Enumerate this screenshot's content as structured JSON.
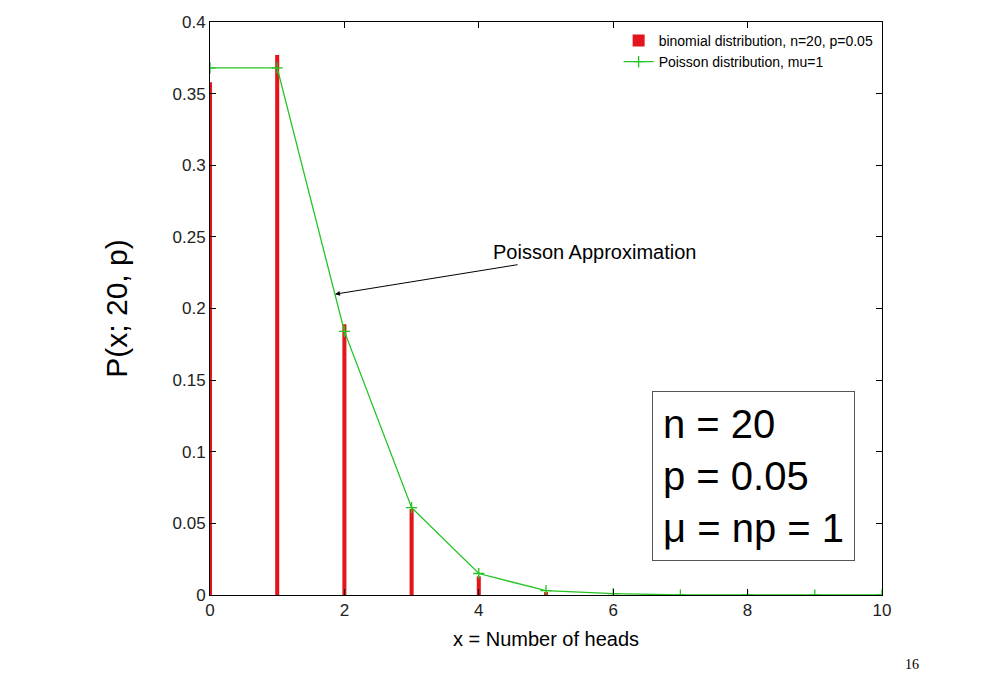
{
  "chart_data": {
    "type": "bar",
    "x_label": "x = Number of heads",
    "y_label": "P(x; 20, p)",
    "x": [
      0,
      1,
      2,
      3,
      4,
      5,
      6,
      7,
      8,
      9,
      10
    ],
    "series": [
      {
        "name": "binomial distribution, n=20, p=0.05",
        "type": "bar",
        "color": "#e3141b",
        "values": [
          0.358,
          0.377,
          0.189,
          0.06,
          0.013,
          0.002,
          0,
          0,
          0,
          0,
          0
        ]
      },
      {
        "name": "Poisson distribution, mu=1",
        "type": "line",
        "color": "#22c422",
        "marker": "plus",
        "line_style": "solid",
        "values": [
          0.368,
          0.368,
          0.184,
          0.061,
          0.015,
          0.003,
          0.001,
          0,
          0,
          0,
          0
        ]
      }
    ],
    "xlim": [
      0,
      10
    ],
    "xticks": [
      0,
      2,
      4,
      6,
      8,
      10
    ],
    "ylim": [
      0,
      0.4
    ],
    "yticks": [
      0,
      0.05,
      0.1,
      0.15,
      0.2,
      0.25,
      0.3,
      0.35,
      0.4
    ],
    "grid": false,
    "legend": "top right",
    "annotations": [
      "Poisson Approximation"
    ],
    "text_box": [
      "n = 20",
      "p = 0.05",
      "μ = np = 1"
    ],
    "page_number": "16"
  }
}
